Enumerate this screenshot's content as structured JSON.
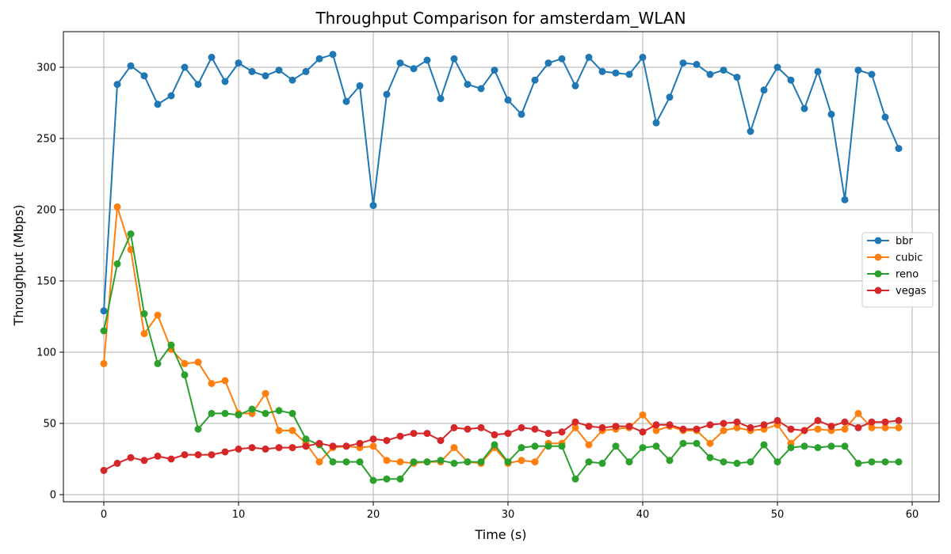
{
  "chart_data": {
    "type": "line",
    "title": "Throughput Comparison for amsterdam_WLAN",
    "xlabel": "Time (s)",
    "ylabel": "Throughput (Mbps)",
    "xlim": [
      -3,
      62
    ],
    "ylim": [
      -5,
      325
    ],
    "xticks": [
      0,
      10,
      20,
      30,
      40,
      50,
      60
    ],
    "yticks": [
      0,
      50,
      100,
      150,
      200,
      250,
      300
    ],
    "grid": true,
    "legend_position": "center-right",
    "x": [
      0,
      1,
      2,
      3,
      4,
      5,
      6,
      7,
      8,
      9,
      10,
      11,
      12,
      13,
      14,
      15,
      16,
      17,
      18,
      19,
      20,
      21,
      22,
      23,
      24,
      25,
      26,
      27,
      28,
      29,
      30,
      31,
      32,
      33,
      34,
      35,
      36,
      37,
      38,
      39,
      40,
      41,
      42,
      43,
      44,
      45,
      46,
      47,
      48,
      49,
      50,
      51,
      52,
      53,
      54,
      55,
      56,
      57,
      58,
      59
    ],
    "series": [
      {
        "name": "bbr",
        "color": "#1f77b4",
        "values": [
          129,
          288,
          301,
          294,
          274,
          280,
          300,
          288,
          307,
          290,
          303,
          297,
          294,
          298,
          291,
          297,
          306,
          309,
          276,
          287,
          203,
          281,
          303,
          299,
          305,
          278,
          306,
          288,
          285,
          298,
          277,
          267,
          291,
          303,
          306,
          287,
          307,
          297,
          296,
          295,
          307,
          261,
          279,
          303,
          302,
          295,
          298,
          293,
          255,
          284,
          300,
          291,
          271,
          297,
          267,
          207,
          298,
          295,
          265,
          243
        ]
      },
      {
        "name": "cubic",
        "color": "#ff7f0e",
        "values": [
          92,
          202,
          172,
          113,
          126,
          102,
          92,
          93,
          78,
          80,
          57,
          57,
          71,
          45,
          45,
          36,
          23,
          33,
          34,
          33,
          34,
          24,
          23,
          22,
          23,
          23,
          33,
          23,
          22,
          33,
          22,
          24,
          23,
          36,
          36,
          47,
          35,
          45,
          46,
          47,
          56,
          45,
          48,
          45,
          45,
          36,
          45,
          47,
          45,
          46,
          49,
          36,
          45,
          46,
          45,
          46,
          57,
          47,
          47,
          47
        ]
      },
      {
        "name": "reno",
        "color": "#2ca02c",
        "values": [
          115,
          162,
          183,
          127,
          92,
          105,
          84,
          46,
          57,
          57,
          56,
          60,
          57,
          59,
          57,
          39,
          35,
          23,
          23,
          23,
          10,
          11,
          11,
          23,
          23,
          24,
          22,
          23,
          23,
          35,
          23,
          33,
          34,
          34,
          34,
          11,
          23,
          22,
          34,
          23,
          33,
          34,
          24,
          36,
          36,
          26,
          23,
          22,
          23,
          35,
          23,
          33,
          34,
          33,
          34,
          34,
          22,
          23,
          23,
          23
        ]
      },
      {
        "name": "vegas",
        "color": "#d62728",
        "values": [
          17,
          22,
          26,
          24,
          27,
          25,
          28,
          28,
          28,
          30,
          32,
          33,
          32,
          33,
          33,
          34,
          36,
          34,
          34,
          36,
          39,
          38,
          41,
          43,
          43,
          38,
          47,
          46,
          47,
          42,
          43,
          47,
          46,
          43,
          44,
          51,
          48,
          47,
          48,
          48,
          44,
          49,
          49,
          46,
          46,
          49,
          50,
          51,
          47,
          49,
          52,
          46,
          45,
          52,
          48,
          51,
          47,
          51,
          51,
          52
        ]
      }
    ]
  }
}
